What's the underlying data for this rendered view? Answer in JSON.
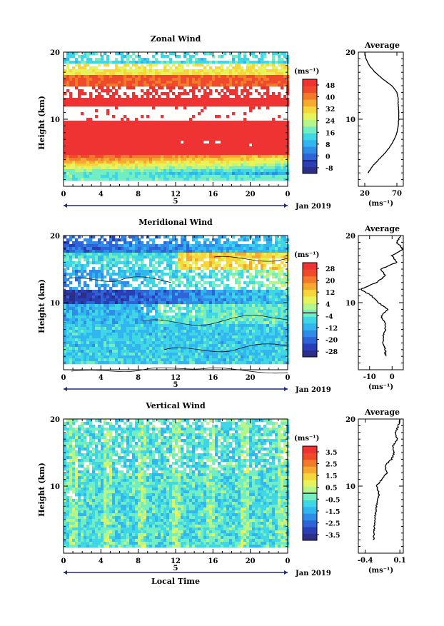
{
  "panels": [
    {
      "key": "zonal",
      "title": "Zonal Wind",
      "ylabel": "Height (km)",
      "yticks": [
        "20",
        "10"
      ],
      "xticks": [
        "0",
        "4",
        "8",
        "12",
        "16",
        "20",
        "0"
      ],
      "date_tick": "5",
      "date_label": "Jan 2019",
      "xlabel": "",
      "colorbar": {
        "unit": "(ms⁻¹)",
        "ticks": [
          "48",
          "40",
          "32",
          "24",
          "16",
          "8",
          "0",
          "-8"
        ],
        "colors": [
          "#2c2f8a",
          "#2a3fb5",
          "#2f63d8",
          "#2f8de8",
          "#31b6ef",
          "#3fd7e6",
          "#72eec2",
          "#b5f58a",
          "#e6f35a",
          "#f6d63a",
          "#f7a92f",
          "#f47a2b",
          "#f04a2c",
          "#ef3232"
        ]
      },
      "average": {
        "title": "Average",
        "xticks": [
          "20",
          "70"
        ],
        "xlim": [
          10,
          80
        ],
        "unit": "(ms⁻¹)"
      }
    },
    {
      "key": "meridional",
      "title": "Meridional Wind",
      "ylabel": "Height (km)",
      "yticks": [
        "20",
        "10"
      ],
      "xticks": [
        "0",
        "4",
        "8",
        "12",
        "16",
        "20",
        "0"
      ],
      "date_tick": "5",
      "date_label": "Jan 2019",
      "xlabel": "",
      "colorbar": {
        "unit": "(ms⁻¹)",
        "ticks": [
          "28",
          "20",
          "12",
          "4",
          "-4",
          "-12",
          "-20",
          "-28"
        ],
        "colors": [
          "#2c2f8a",
          "#2a3fb5",
          "#2f63d8",
          "#2f8de8",
          "#31b6ef",
          "#3fd7e6",
          "#72eec2",
          "#b5f58a",
          "#e6f35a",
          "#f6d63a",
          "#f7a92f",
          "#f47a2b",
          "#f04a2c",
          "#ef3232"
        ]
      },
      "average": {
        "title": "Average",
        "xticks": [
          "-10",
          "0"
        ],
        "xlim": [
          -15,
          5
        ],
        "unit": "(ms⁻¹)"
      }
    },
    {
      "key": "vertical",
      "title": "Vertical Wind",
      "ylabel": "Height (km)",
      "yticks": [
        "20",
        "10"
      ],
      "xticks": [
        "0",
        "4",
        "8",
        "12",
        "16",
        "20",
        "0"
      ],
      "date_tick": "5",
      "date_label": "Jan 2019",
      "xlabel": "Local Time",
      "colorbar": {
        "unit": "(ms⁻¹)",
        "ticks": [
          "3.5",
          "2.5",
          "1.5",
          "0.5",
          "-0.5",
          "-1.5",
          "-2.5",
          "-3.5"
        ],
        "colors": [
          "#2c2f8a",
          "#2a3fb5",
          "#2f63d8",
          "#2f8de8",
          "#31b6ef",
          "#3fd7e6",
          "#72eec2",
          "#b5f58a",
          "#e6f35a",
          "#f6d63a",
          "#f7a92f",
          "#f47a2b",
          "#f04a2c",
          "#ef3232"
        ]
      },
      "average": {
        "title": "Average",
        "xticks": [
          "-0.4",
          "0.1"
        ],
        "xlim": [
          -0.5,
          0.15
        ],
        "unit": "(ms⁻¹)"
      }
    }
  ],
  "chart_data": [
    {
      "type": "heatmap",
      "title": "Zonal Wind",
      "xlabel": "",
      "ylabel": "Height (km)",
      "xlim": [
        0,
        24
      ],
      "ylim": [
        0,
        20
      ],
      "x_ticks": [
        0,
        4,
        8,
        12,
        16,
        20,
        24
      ],
      "value_unit": "ms-1",
      "colorbar_range": [
        -8,
        52
      ],
      "profile": {
        "title": "Average",
        "height": [
          2,
          3,
          4,
          5,
          6,
          7,
          8,
          9,
          10,
          11,
          12,
          13,
          14,
          15,
          16,
          17,
          18,
          19,
          20
        ],
        "value": [
          25,
          32,
          42,
          52,
          60,
          66,
          70,
          72,
          73,
          73,
          72,
          72,
          70,
          62,
          48,
          36,
          27,
          22,
          20
        ]
      }
    },
    {
      "type": "heatmap",
      "title": "Meridional Wind",
      "xlabel": "",
      "ylabel": "Height (km)",
      "xlim": [
        0,
        24
      ],
      "ylim": [
        0,
        20
      ],
      "x_ticks": [
        0,
        4,
        8,
        12,
        16,
        20,
        24
      ],
      "value_unit": "ms-1",
      "colorbar_range": [
        -28,
        32
      ],
      "profile": {
        "title": "Average",
        "height": [
          2,
          3,
          4,
          5,
          6,
          7,
          8,
          9,
          10,
          11,
          12,
          13,
          14,
          15,
          16,
          17,
          18,
          19,
          20
        ],
        "value": [
          -3,
          -3,
          -4,
          -4,
          -3,
          -3,
          -5,
          -2,
          -6,
          -9,
          -14,
          -7,
          -3,
          -5,
          2,
          0,
          5,
          2,
          4
        ]
      }
    },
    {
      "type": "heatmap",
      "title": "Vertical Wind",
      "xlabel": "Local Time",
      "ylabel": "Height (km)",
      "xlim": [
        0,
        24
      ],
      "ylim": [
        0,
        20
      ],
      "x_ticks": [
        0,
        4,
        8,
        12,
        16,
        20,
        24
      ],
      "value_unit": "ms-1",
      "colorbar_range": [
        -3.5,
        3.5
      ],
      "profile": {
        "title": "Average",
        "height": [
          2,
          3,
          4,
          5,
          6,
          7,
          8,
          9,
          10,
          11,
          12,
          13,
          14,
          15,
          16,
          17,
          18,
          19,
          20
        ],
        "value": [
          -0.28,
          -0.27,
          -0.27,
          -0.26,
          -0.25,
          -0.24,
          -0.22,
          -0.2,
          -0.24,
          -0.16,
          -0.08,
          -0.12,
          -0.02,
          0.02,
          0.0,
          0.06,
          0.04,
          0.08,
          0.1
        ]
      }
    }
  ]
}
